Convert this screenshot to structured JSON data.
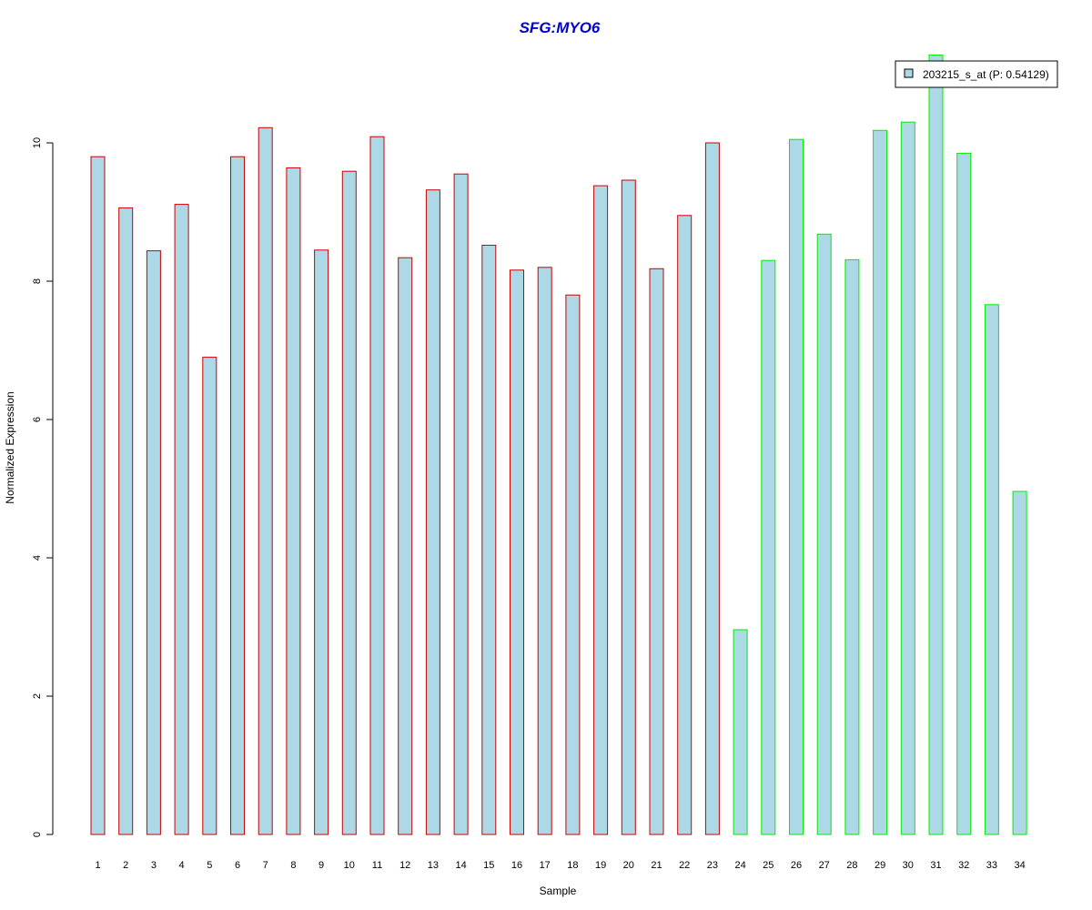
{
  "chart_data": {
    "type": "bar",
    "title": "SFG:MYO6",
    "title_color": "#0000cc",
    "xlabel": "Sample",
    "ylabel": "Normalized Expression",
    "ylim": [
      0,
      11.5
    ],
    "yticks": [
      "0",
      "2",
      "4",
      "6",
      "8",
      "10"
    ],
    "grid": false,
    "legend_position": "top-right",
    "legend": [
      {
        "label": "203215_s_at (P: 0.54129)",
        "fill": "#add8e6"
      }
    ],
    "bar_fill": "#add8e6",
    "group_colors": {
      "group1": "#cc0000",
      "group2": "#00ee00"
    },
    "categories": [
      "1",
      "2",
      "3",
      "4",
      "5",
      "6",
      "7",
      "8",
      "9",
      "10",
      "11",
      "12",
      "13",
      "14",
      "15",
      "16",
      "17",
      "18",
      "19",
      "20",
      "21",
      "22",
      "23",
      "24",
      "25",
      "26",
      "27",
      "28",
      "29",
      "30",
      "31",
      "32",
      "33",
      "34"
    ],
    "groups": [
      "group1",
      "group1",
      "group1",
      "group1",
      "group1",
      "group1",
      "group1",
      "group1",
      "group1",
      "group1",
      "group1",
      "group1",
      "group1",
      "group1",
      "group1",
      "group1",
      "group1",
      "group1",
      "group1",
      "group1",
      "group1",
      "group1",
      "group1",
      "group2",
      "group2",
      "group2",
      "group2",
      "group2",
      "group2",
      "group2",
      "group2",
      "group2",
      "group2",
      "group2"
    ],
    "values": [
      9.8,
      9.06,
      8.44,
      9.11,
      6.9,
      9.8,
      10.22,
      9.64,
      8.45,
      9.59,
      10.09,
      8.34,
      9.32,
      9.55,
      8.52,
      8.16,
      8.2,
      7.8,
      9.38,
      9.46,
      8.18,
      8.95,
      10.0,
      2.96,
      8.3,
      10.05,
      8.68,
      8.31,
      10.18,
      10.3,
      11.27,
      9.85,
      7.66,
      4.96
    ]
  }
}
